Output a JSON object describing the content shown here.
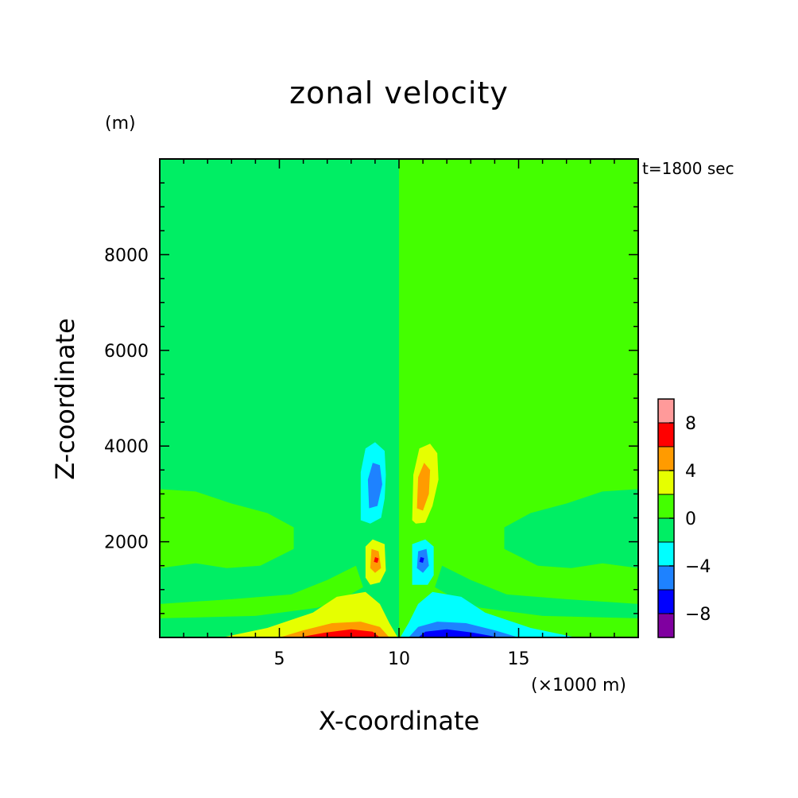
{
  "chart_data": {
    "type": "heatmap",
    "title": "zonal velocity",
    "xlabel": "X-coordinate",
    "ylabel": "Z-coordinate",
    "x_unit_label": "(×1000 m)",
    "y_unit_label": "(m)",
    "annotation": "t=1800 sec",
    "xlim": [
      0,
      20
    ],
    "ylim": [
      0,
      10000
    ],
    "xticks": [
      5,
      10,
      15
    ],
    "yticks": [
      2000,
      4000,
      6000,
      8000
    ],
    "colorbar": {
      "levels": [
        -10,
        -8,
        -6,
        -4,
        -2,
        0,
        2,
        4,
        6,
        8,
        10
      ],
      "colors": [
        "#8000a0",
        "#0000ff",
        "#1e82ff",
        "#00ffff",
        "#00ee64",
        "#44ff00",
        "#e6ff00",
        "#ff9b00",
        "#ff0000",
        "#ff9a9a"
      ],
      "tick_labels": [
        "-8",
        "-4",
        "0",
        "4",
        "8"
      ],
      "tick_values": [
        -8,
        -4,
        0,
        4,
        8
      ]
    },
    "background_value_left": -1,
    "background_value_right": 1,
    "features": [
      {
        "kind": "contour-region",
        "value": -3,
        "x": 9.0,
        "z": 3100,
        "note": "upper left lobe"
      },
      {
        "kind": "contour-region",
        "value": -5,
        "x": 9.0,
        "z": 3100
      },
      {
        "kind": "contour-region",
        "value": 3,
        "x": 11.0,
        "z": 3100,
        "note": "upper right lobe"
      },
      {
        "kind": "contour-region",
        "value": 5,
        "x": 11.0,
        "z": 3100
      },
      {
        "kind": "contour-region",
        "value": 3,
        "x": 9.0,
        "z": 1600
      },
      {
        "kind": "contour-region",
        "value": 5,
        "x": 9.0,
        "z": 1600
      },
      {
        "kind": "contour-region",
        "value": 7,
        "x": 9.1,
        "z": 1600
      },
      {
        "kind": "contour-region",
        "value": -3,
        "x": 11.0,
        "z": 1600
      },
      {
        "kind": "contour-region",
        "value": -5,
        "x": 11.0,
        "z": 1600
      },
      {
        "kind": "contour-region",
        "value": -7,
        "x": 10.9,
        "z": 1600
      },
      {
        "kind": "contour-region",
        "value": 3,
        "x": 8.2,
        "z": 300,
        "note": "surface positive jet"
      },
      {
        "kind": "contour-region",
        "value": 5,
        "x": 8.0,
        "z": 150
      },
      {
        "kind": "contour-region",
        "value": 7,
        "x": 8.0,
        "z": 50
      },
      {
        "kind": "contour-region",
        "value": -3,
        "x": 11.8,
        "z": 300,
        "note": "surface negative jet"
      },
      {
        "kind": "contour-region",
        "value": -5,
        "x": 12.0,
        "z": 150
      },
      {
        "kind": "contour-region",
        "value": -7,
        "x": 12.2,
        "z": 50
      }
    ]
  }
}
